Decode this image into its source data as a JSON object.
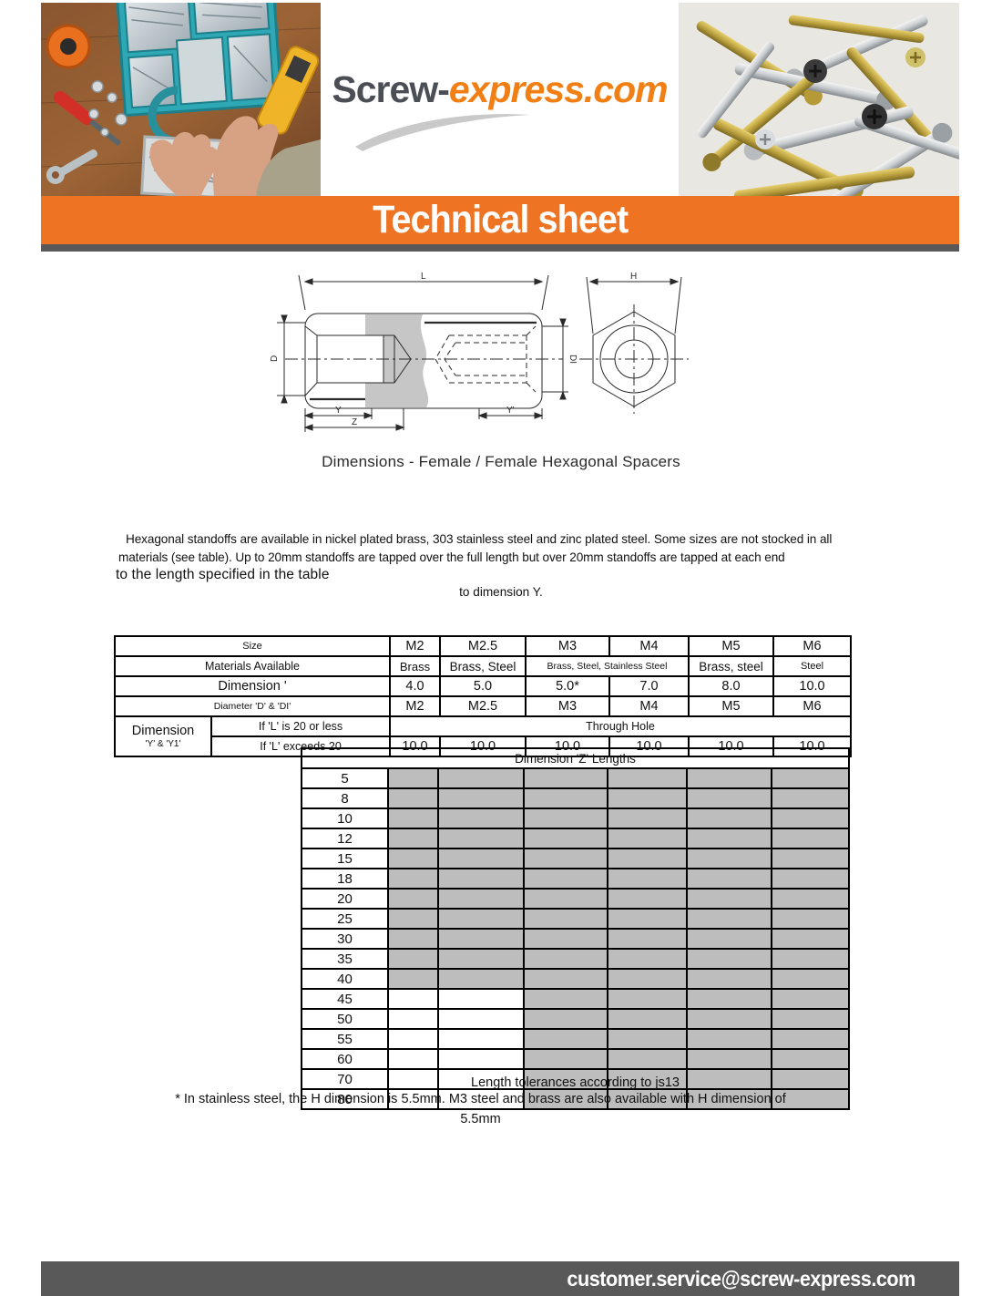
{
  "header": {
    "logo_part1": "Screw-",
    "logo_part2": "express.com",
    "banner_title": "Technical sheet"
  },
  "drawing": {
    "caption": "Dimensions - Female / Female Hexagonal Spacers",
    "labels": {
      "L": "L",
      "D": "D",
      "DI": "DI",
      "Y": "Y",
      "Z": "Z",
      "Y2": "Y'",
      "H": "H"
    }
  },
  "intro": {
    "line1": "Hexagonal standoffs are available in nickel plated brass, 303 stainless steel and zinc plated steel. Some sizes are not stocked in all",
    "line2": "materials (see table). Up to 20mm standoffs are tapped over the full length but over 20mm standoffs are tapped at each end",
    "line3": "to the length specified in the table",
    "line4": "to dimension Y."
  },
  "spec_table": {
    "row_labels": {
      "size": "Size",
      "materials": "Materials Available",
      "dimension_h": "Dimension '",
      "diameter": "Diameter 'D' & 'DI'",
      "dimension_y_line1": "Dimension",
      "dimension_y_line2": "'Y' & 'Y1'",
      "l_20_or_less": "If 'L' is 20 or less",
      "l_exceeds_20": "If 'L' exceeds 20"
    },
    "sizes": [
      "M2",
      "M2.5",
      "M3",
      "M4",
      "M5",
      "M6"
    ],
    "materials": {
      "m2": "Brass",
      "m2_5": "Brass, Steel",
      "m3_m4": "Brass, Steel, Stainless Steel",
      "m5": "Brass, steel",
      "m6": "Steel"
    },
    "dimension_h_values": [
      "4.0",
      "5.0",
      "5.0*",
      "7.0",
      "8.0",
      "10.0"
    ],
    "diameter_values": [
      "M2",
      "M2.5",
      "M3",
      "M4",
      "M5",
      "M6"
    ],
    "through_hole": "Through Hole",
    "exceeds_values": [
      "10.0",
      "10.0",
      "10.0",
      "10.0",
      "10.0",
      "10.0"
    ]
  },
  "z_table": {
    "header": "Dimension 'Z' Lengths",
    "rows": [
      {
        "length": "5",
        "available": [
          1,
          1,
          1,
          1,
          1,
          1
        ]
      },
      {
        "length": "8",
        "available": [
          1,
          1,
          1,
          1,
          1,
          1
        ]
      },
      {
        "length": "10",
        "available": [
          1,
          1,
          1,
          1,
          1,
          1
        ]
      },
      {
        "length": "12",
        "available": [
          1,
          1,
          1,
          1,
          1,
          1
        ]
      },
      {
        "length": "15",
        "available": [
          1,
          1,
          1,
          1,
          1,
          1
        ]
      },
      {
        "length": "18",
        "available": [
          1,
          1,
          1,
          1,
          1,
          1
        ]
      },
      {
        "length": "20",
        "available": [
          1,
          1,
          1,
          1,
          1,
          1
        ]
      },
      {
        "length": "25",
        "available": [
          1,
          1,
          1,
          1,
          1,
          1
        ]
      },
      {
        "length": "30",
        "available": [
          1,
          1,
          1,
          1,
          1,
          1
        ]
      },
      {
        "length": "35",
        "available": [
          1,
          1,
          1,
          1,
          1,
          1
        ]
      },
      {
        "length": "40",
        "available": [
          1,
          1,
          1,
          1,
          1,
          1
        ]
      },
      {
        "length": "45",
        "available": [
          0,
          0,
          1,
          1,
          1,
          1
        ]
      },
      {
        "length": "50",
        "available": [
          0,
          0,
          1,
          1,
          1,
          1
        ]
      },
      {
        "length": "55",
        "available": [
          0,
          0,
          1,
          1,
          1,
          1
        ]
      },
      {
        "length": "60",
        "available": [
          0,
          0,
          1,
          1,
          1,
          1
        ]
      },
      {
        "length": "70",
        "available": [
          0,
          0,
          1,
          1,
          1,
          1
        ]
      },
      {
        "length": "80",
        "available": [
          0,
          0,
          1,
          1,
          1,
          1
        ]
      }
    ]
  },
  "notes": {
    "tolerance": "Length tolerances according to js13",
    "footnote_line1": "* In stainless steel, the H dimension is 5.5mm. M3 steel and brass are also available with H dimension of",
    "footnote_line2": "5.5mm"
  },
  "footer": {
    "email": "customer.service@screw-express.com"
  },
  "colors": {
    "accent_orange": "#EE7423",
    "logo_orange": "#F17F14",
    "logo_dark": "#4B4E54",
    "dark_bar": "#595959",
    "table_grey": "#BDBDBD"
  }
}
